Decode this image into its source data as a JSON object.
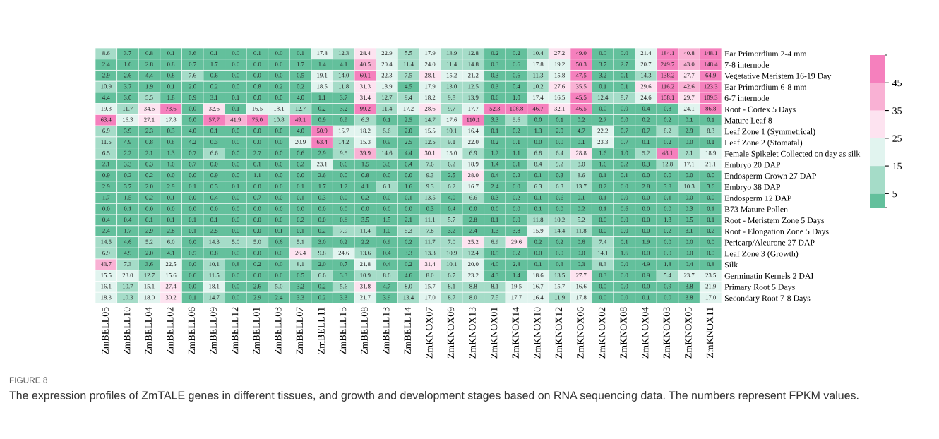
{
  "chart_data": {
    "type": "heatmap",
    "annotations": [
      "FIGURE 8",
      "The expression profiles of ZmTALE genes in different tissues, and growth and development stages based on RNA sequencing data. The numbers represent FPKM values."
    ],
    "categories": [
      "ZmBELL05",
      "ZmBELL10",
      "ZmBELL04",
      "ZmBELL02",
      "ZmBELL06",
      "ZmBELL09",
      "ZmBELL12",
      "ZmBELL01",
      "ZmBELL03",
      "ZmBELL07",
      "ZmBELL11",
      "ZmBELL15",
      "ZmBELL08",
      "ZmBELL13",
      "ZmBELL14",
      "ZmKNOX07",
      "ZmKNOX09",
      "ZmKNOX13",
      "ZmKNOX01",
      "ZmKNOX14",
      "ZmKNOX10",
      "ZmKNOX12",
      "ZmKNOX06",
      "ZmKNOX02",
      "ZmKNOX08",
      "ZmKNOX04",
      "ZmKNOX03",
      "ZmKNOX05",
      "ZmKNOX11"
    ],
    "y_categories": [
      "Ear Primordium 2-4 mm",
      "7-8 internode",
      "Vegetative Meristem 16-19 Day",
      "Ear Primordium 6-8 mm",
      "6-7 internode",
      "Root - Cortex 5 Days",
      "Mature Leaf 8",
      "Leaf Zone 1 (Symmetrical)",
      "Leaf Zone 2 (Stomatal)",
      "Female Spikelet Collected on day as silk",
      "Embryo 20 DAP",
      "Endosperm Crown 27 DAP",
      "Embryo 38 DAP",
      "Endosperm 12 DAP",
      "B73 Mature Pollen",
      "Root - Meristem Zone 5 Days",
      "Root - Elongation Zone 5 Days",
      "Pericarp/Aleurone 27 DAP",
      "Leaf Zone 3 (Growth)",
      "Silk",
      "Germinatin Kernels 2 DAI",
      "Primary Root 5 Days",
      "Secondary Root 7-8 Days"
    ],
    "cells": [
      [
        8.6,
        3.7,
        0.8,
        0.1,
        3.6,
        0.1,
        0.0,
        0.1,
        0.0,
        0.1,
        17.8,
        12.3,
        28.4,
        22.9,
        5.5,
        17.9,
        13.9,
        12.8,
        0.2,
        0.2,
        10.4,
        27.2,
        49.0,
        0.0,
        0.0,
        21.4,
        184.1,
        40.8,
        148.1
      ],
      [
        2.4,
        1.6,
        2.8,
        0.8,
        0.7,
        1.7,
        0.0,
        0.0,
        0.0,
        1.7,
        1.4,
        4.1,
        40.5,
        20.4,
        11.4,
        24.0,
        11.4,
        14.8,
        0.3,
        0.6,
        17.8,
        19.2,
        50.3,
        3.7,
        2.7,
        20.7,
        249.7,
        43.0,
        148.4
      ],
      [
        2.9,
        2.6,
        4.4,
        0.8,
        7.6,
        0.6,
        0.0,
        0.0,
        0.0,
        0.5,
        19.1,
        14.0,
        60.1,
        22.3,
        7.5,
        28.1,
        15.2,
        21.2,
        0.3,
        0.6,
        11.3,
        15.8,
        47.5,
        3.2,
        0.1,
        14.3,
        138.2,
        27.7,
        64.9
      ],
      [
        10.9,
        3.7,
        1.9,
        0.1,
        2.0,
        0.2,
        0.0,
        0.8,
        0.2,
        0.2,
        18.5,
        11.8,
        31.3,
        18.9,
        4.5,
        17.9,
        13.0,
        12.5,
        0.3,
        0.4,
        10.2,
        27.6,
        35.5,
        0.1,
        0.1,
        29.6,
        116.2,
        42.6,
        123.3
      ],
      [
        4.4,
        3.0,
        5.5,
        1.8,
        0.9,
        3.1,
        0.1,
        0.0,
        0.0,
        4.0,
        1.1,
        3.7,
        31.4,
        12.7,
        9.4,
        18.2,
        9.8,
        13.9,
        0.6,
        1.0,
        17.4,
        16.5,
        45.5,
        12.4,
        8.7,
        24.6,
        158.1,
        29.7,
        109.3
      ],
      [
        19.3,
        11.7,
        34.6,
        73.6,
        0.0,
        32.6,
        0.1,
        16.5,
        18.1,
        12.7,
        0.2,
        3.2,
        99.2,
        11.4,
        17.2,
        28.6,
        9.7,
        17.7,
        52.3,
        108.8,
        46.7,
        32.1,
        46.5,
        0.0,
        0.0,
        0.4,
        0.3,
        24.1,
        86.8
      ],
      [
        63.4,
        16.3,
        27.1,
        17.8,
        0.0,
        57.7,
        41.9,
        75.0,
        10.8,
        49.1,
        0.9,
        0.9,
        6.3,
        0.1,
        2.5,
        14.7,
        17.6,
        110.1,
        3.3,
        5.6,
        0.0,
        0.1,
        0.2,
        2.7,
        0.0,
        0.2,
        0.2,
        0.1,
        0.1
      ],
      [
        6.9,
        3.9,
        2.3,
        0.3,
        4.0,
        0.1,
        0.0,
        0.0,
        0.0,
        4.0,
        50.9,
        15.7,
        18.2,
        5.6,
        2.0,
        15.5,
        10.1,
        16.4,
        0.1,
        0.2,
        1.3,
        2.0,
        4.7,
        22.2,
        0.7,
        0.7,
        8.2,
        2.9,
        8.3
      ],
      [
        11.5,
        4.9,
        0.8,
        0.8,
        4.2,
        0.3,
        0.0,
        0.0,
        0.0,
        20.9,
        63.4,
        14.2,
        15.3,
        0.9,
        2.5,
        12.5,
        9.1,
        22.0,
        0.2,
        0.1,
        0.0,
        0.0,
        0.1,
        23.3,
        0.7,
        0.1,
        0.2,
        0.0,
        0.1
      ],
      [
        6.5,
        2.2,
        2.1,
        1.3,
        0.7,
        6.6,
        0.0,
        2.7,
        0.0,
        0.6,
        2.9,
        9.5,
        39.9,
        14.6,
        4.4,
        30.1,
        15.0,
        6.9,
        1.2,
        1.1,
        6.8,
        6.4,
        28.8,
        1.6,
        1.0,
        5.2,
        48.1,
        7.1,
        18.9
      ],
      [
        2.1,
        3.3,
        0.3,
        1.0,
        0.7,
        0.0,
        0.0,
        0.1,
        0.0,
        0.2,
        23.1,
        0.6,
        1.5,
        3.8,
        0.4,
        7.6,
        6.2,
        18.9,
        1.4,
        0.1,
        8.4,
        9.2,
        8.0,
        1.6,
        0.2,
        0.3,
        12.8,
        17.1,
        21.1
      ],
      [
        0.9,
        0.2,
        0.2,
        0.0,
        0.0,
        0.9,
        0.0,
        1.1,
        0.0,
        0.0,
        2.6,
        0.0,
        0.8,
        0.0,
        0.0,
        9.3,
        2.5,
        28.0,
        0.4,
        0.2,
        0.1,
        0.3,
        8.6,
        0.1,
        0.1,
        0.0,
        0.0,
        0.0,
        0.0
      ],
      [
        2.9,
        3.7,
        2.0,
        2.9,
        0.1,
        0.3,
        0.1,
        0.0,
        0.0,
        0.1,
        1.7,
        1.2,
        4.1,
        6.1,
        1.6,
        9.3,
        6.2,
        16.7,
        2.4,
        0.0,
        6.3,
        6.3,
        13.7,
        0.2,
        0.0,
        2.8,
        3.8,
        10.3,
        3.6
      ],
      [
        1.7,
        1.5,
        0.2,
        0.1,
        0.0,
        0.4,
        0.0,
        0.7,
        0.0,
        0.1,
        0.3,
        0.0,
        0.2,
        0.0,
        0.1,
        13.5,
        4.0,
        6.6,
        0.3,
        0.2,
        0.1,
        0.6,
        0.1,
        0.1,
        0.0,
        0.0,
        0.1,
        0.0,
        0.0
      ],
      [
        0.0,
        0.1,
        0.0,
        0.0,
        0.0,
        0.0,
        0.0,
        0.0,
        0.0,
        0.0,
        0.0,
        0.0,
        0.0,
        0.0,
        0.0,
        0.3,
        0.4,
        0.0,
        0.0,
        0.0,
        0.1,
        0.0,
        0.2,
        0.1,
        0.6,
        0.0,
        0.0,
        0.3,
        0.1
      ],
      [
        0.4,
        0.4,
        0.1,
        0.1,
        0.1,
        0.1,
        0.0,
        0.0,
        0.0,
        0.2,
        0.0,
        0.8,
        3.5,
        1.5,
        2.1,
        11.1,
        5.7,
        2.8,
        0.1,
        0.0,
        11.8,
        10.2,
        5.2,
        0.0,
        0.0,
        0.0,
        1.3,
        0.5,
        0.1
      ],
      [
        2.4,
        1.7,
        2.9,
        2.8,
        0.1,
        2.5,
        0.0,
        0.0,
        0.1,
        0.1,
        0.2,
        7.9,
        11.4,
        1.0,
        5.3,
        7.8,
        3.2,
        2.4,
        1.3,
        3.8,
        15.9,
        14.4,
        11.8,
        0.0,
        0.0,
        0.0,
        0.2,
        3.1,
        0.2
      ],
      [
        14.5,
        4.6,
        5.2,
        6.0,
        0.0,
        14.3,
        5.0,
        5.0,
        0.6,
        5.1,
        3.0,
        0.2,
        2.2,
        0.9,
        0.2,
        11.7,
        7.0,
        25.2,
        6.9,
        29.6,
        0.2,
        0.2,
        0.6,
        7.4,
        0.1,
        1.9,
        0.0,
        0.0,
        0.0
      ],
      [
        6.9,
        4.9,
        2.0,
        4.1,
        0.5,
        0.8,
        0.0,
        0.0,
        0.0,
        26.4,
        9.8,
        24.6,
        13.6,
        0.4,
        3.3,
        13.3,
        10.9,
        12.4,
        0.5,
        0.2,
        0.0,
        0.0,
        0.0,
        14.1,
        1.6,
        0.0,
        0.0,
        0.0,
        0.0
      ],
      [
        43.7,
        7.3,
        3.6,
        22.5,
        0.0,
        10.1,
        0.8,
        0.2,
        0.0,
        8.1,
        2.0,
        0.7,
        21.8,
        0.4,
        0.2,
        31.4,
        10.1,
        20.0,
        4.0,
        2.8,
        0.1,
        0.3,
        0.3,
        8.3,
        0.0,
        4.9,
        1.8,
        0.4,
        0.8
      ],
      [
        15.5,
        23.0,
        12.7,
        15.6,
        0.6,
        11.5,
        0.0,
        0.0,
        0.0,
        0.5,
        6.6,
        3.3,
        10.9,
        8.6,
        4.6,
        8.0,
        6.7,
        23.2,
        4.3,
        1.4,
        18.6,
        13.5,
        27.7,
        0.3,
        0.0,
        0.9,
        5.4,
        23.7,
        23.5
      ],
      [
        16.1,
        10.7,
        15.1,
        27.4,
        0.0,
        18.1,
        0.0,
        2.6,
        5.0,
        3.2,
        0.2,
        5.6,
        31.8,
        4.7,
        8.0,
        15.7,
        8.1,
        8.8,
        8.1,
        19.5,
        16.7,
        15.7,
        16.6,
        0.0,
        0.0,
        0.0,
        0.9,
        3.8,
        21.9
      ],
      [
        18.3,
        10.3,
        18.0,
        30.2,
        0.1,
        14.7,
        0.0,
        2.9,
        2.4,
        3.3,
        0.2,
        3.3,
        21.7,
        3.9,
        13.4,
        17.0,
        8.7,
        8.0,
        7.5,
        17.7,
        16.4,
        11.9,
        17.8,
        0.0,
        0.0,
        0.1,
        0.0,
        3.8,
        17.0
      ]
    ],
    "cell_labels": [
      [
        "8.6",
        "3.7",
        "0.8",
        "0.1",
        "3.6",
        "0.1",
        "0.0",
        "0.1",
        "0.0",
        "0.1",
        "17.8",
        "12.3",
        "28.4",
        "22.9",
        "5.5",
        "17.9",
        "13.9",
        "12.8",
        "0.2",
        "0.2",
        "10.4",
        "27.2",
        "49.0",
        "0.0",
        "0.0",
        "21.4",
        "184.1",
        "40.8",
        "148.1"
      ],
      [
        "2.4",
        "1.6",
        "2.8",
        "0.8",
        "0.7",
        "1.7",
        "0.0",
        "0.0",
        "0.0",
        "1.7",
        "1.4",
        "4.1",
        "40.5",
        "20.4",
        "11.4",
        "24.0",
        "11.4",
        "14.8",
        "0.3",
        "0.6",
        "17.8",
        "19.2",
        "50.3",
        "3.7",
        "2.7",
        "20.7",
        "249.7",
        "43.0",
        "148.4"
      ],
      [
        "2.9",
        "2.6",
        "4.4",
        "0.8",
        "7.6",
        "0.6",
        "0.0",
        "0.0",
        "0.0",
        "0.5",
        "19.1",
        "14.0",
        "60.1",
        "22.3",
        "7.5",
        "28.1",
        "15.2",
        "21.2",
        "0.3",
        "0.6",
        "11.3",
        "15.8",
        "47.5",
        "3.2",
        "0.1",
        "14.3",
        "138.2",
        "27.7",
        "64.9"
      ],
      [
        "10.9",
        "3.7",
        "1.9",
        "0.1",
        "2.0",
        "0.2",
        "0.0",
        "0.8",
        "0.2",
        "0.2",
        "18.5",
        "11.8",
        "31.3",
        "18.9",
        "4.5",
        "17.9",
        "13.0",
        "12.5",
        "0.3",
        "0.4",
        "10.2",
        "27.6",
        "35.5",
        "0.1",
        "0.1",
        "29.6",
        "116.2",
        "42.6",
        "123.3"
      ],
      [
        "4.4",
        "3.0",
        "5.5",
        "1.8",
        "0.9",
        "3.1",
        "0.1",
        "0.0",
        "0.0",
        "4.0",
        "1.1",
        "3.7",
        "31.4",
        "12.7",
        "9.4",
        "18.2",
        "9.8",
        "13.9",
        "0.6",
        "1.0",
        "17.4",
        "16.5",
        "45.5",
        "12.4",
        "8.7",
        "24.6",
        "158.1",
        "29.7",
        "109.3"
      ],
      [
        "19.3",
        "11.7",
        "34.6",
        "73.6",
        "0.0",
        "32.6",
        "0.1",
        "16.5",
        "18.1",
        "12.7",
        "0.2",
        "3.2",
        "99.2",
        "11.4",
        "17.2",
        "28.6",
        "9.7",
        "17.7",
        "52.3",
        "108.8",
        "46.7",
        "32.1",
        "46.5",
        "0.0",
        "0.0",
        "0.4",
        "0.3",
        "24.1",
        "86.8"
      ],
      [
        "63.4",
        "16.3",
        "27.1",
        "17.8",
        "0.0",
        "57.7",
        "41.9",
        "75.0",
        "10.8",
        "49.1",
        "0.9",
        "0.9",
        "6.3",
        "0.1",
        "2.5",
        "14.7",
        "17.6",
        "110.1",
        "3.3",
        "5.6",
        "0.0",
        "0.1",
        "0.2",
        "2.7",
        "0.0",
        "0.2",
        "0.2",
        "0.1",
        "0.1"
      ],
      [
        "6.9",
        "3.9",
        "2.3",
        "0.3",
        "4.0",
        "0.1",
        "0.0",
        "0.0",
        "0.0",
        "4.0",
        "50.9",
        "15.7",
        "18.2",
        "5.6",
        "2.0",
        "15.5",
        "10.1",
        "16.4",
        "0.1",
        "0.2",
        "1.3",
        "2.0",
        "4.7",
        "22.2",
        "0.7",
        "0.7",
        "8.2",
        "2.9",
        "8.3"
      ],
      [
        "11.5",
        "4.9",
        "0.8",
        "0.8",
        "4.2",
        "0.3",
        "0.0",
        "0.0",
        "0.0",
        "20.9",
        "63.4",
        "14.2",
        "15.3",
        "0.9",
        "2.5",
        "12.5",
        "9.1",
        "22.0",
        "0.2",
        "0.1",
        "0.0",
        "0.0",
        "0.1",
        "23.3",
        "0.7",
        "0.1",
        "0.2",
        "0.0",
        "0.1"
      ],
      [
        "6.5",
        "2.2",
        "2.1",
        "1.3",
        "0.7",
        "6.6",
        "0.0",
        "2.7",
        "0.0",
        "0.6",
        "2.9",
        "9.5",
        "39.9",
        "14.6",
        "4.4",
        "30.1",
        "15.0",
        "6.9",
        "1.2",
        "1.1",
        "6.8",
        "6.4",
        "28.8",
        "1.6",
        "1.0",
        "5.2",
        "48.1",
        "7.1",
        "18.9"
      ],
      [
        "2.1",
        "3.3",
        "0.3",
        "1.0",
        "0.7",
        "0.0",
        "0.0",
        "0.1",
        "0.0",
        "0.2",
        "23.1",
        "0.6",
        "1.5",
        "3.8",
        "0.4",
        "7.6",
        "6.2",
        "18.9",
        "1.4",
        "0.1",
        "8.4",
        "9.2",
        "8.0",
        "1.6",
        "0.2",
        "0.3",
        "12.8",
        "17.1",
        "21.1"
      ],
      [
        "0.9",
        "0.2",
        "0.2",
        "0.0",
        "0.0",
        "0.9",
        "0.0",
        "1.1",
        "0.0",
        "0.0",
        "2.6",
        "0.0",
        "0.8",
        "0.0",
        "0.0",
        "9.3",
        "2.5",
        "28.0",
        "0.4",
        "0.2",
        "0.1",
        "0.3",
        "8.6",
        "0.1",
        "0.1",
        "0.0",
        "0.0",
        "0.0",
        "0.0"
      ],
      [
        "2.9",
        "3.7",
        "2.0",
        "2.9",
        "0.1",
        "0.3",
        "0.1",
        "0.0",
        "0.0",
        "0.1",
        "1.7",
        "1.2",
        "4.1",
        "6.1",
        "1.6",
        "9.3",
        "6.2",
        "16.7",
        "2.4",
        "0.0",
        "6.3",
        "6.3",
        "13.7",
        "0.2",
        "0.0",
        "2.8",
        "3.8",
        "10.3",
        "3.6"
      ],
      [
        "1.7",
        "1.5",
        "0.2",
        "0.1",
        "0.0",
        "0.4",
        "0.0",
        "0.7",
        "0.0",
        "0.1",
        "0.3",
        "0.0",
        "0.2",
        "0.0",
        "0.1",
        "13.5",
        "4.0",
        "6.6",
        "0.3",
        "0.2",
        "0.1",
        "0.6",
        "0.1",
        "0.1",
        "0.0",
        "0.0",
        "0.1",
        "0.0",
        "0.0"
      ],
      [
        "0.0",
        "0.1",
        "0.0",
        "0.0",
        "0.0",
        "0.0",
        "0.0",
        "0.0",
        "0.0",
        "0.0",
        "0.0",
        "0.0",
        "0.0",
        "0.0",
        "0.0",
        "0.3",
        "0.4",
        "0.0",
        "0.0",
        "0.0",
        "0.1",
        "0.0",
        "0.2",
        "0.1",
        "0.6",
        "0.0",
        "0.0",
        "0.3",
        "0.1"
      ],
      [
        "0.4",
        "0.4",
        "0.1",
        "0.1",
        "0.1",
        "0.1",
        "0.0",
        "0.0",
        "0.0",
        "0.2",
        "0.0",
        "0.8",
        "3.5",
        "1.5",
        "2.1",
        "11.1",
        "5.7",
        "2.8",
        "0.1",
        "0.0",
        "11.8",
        "10.2",
        "5.2",
        "0.0",
        "0.0",
        "0.0",
        "1.3",
        "0.5",
        "0.1"
      ],
      [
        "2.4",
        "1.7",
        "2.9",
        "2.8",
        "0.1",
        "2.5",
        "0.0",
        "0.0",
        "0.1",
        "0.1",
        "0.2",
        "7.9",
        "11.4",
        "1.0",
        "5.3",
        "7.8",
        "3.2",
        "2.4",
        "1.3",
        "3.8",
        "15.9",
        "14.4",
        "11.8",
        "0.0",
        "0.0",
        "0.0",
        "0.2",
        "3.1",
        "0.2"
      ],
      [
        "14.5",
        "4.6",
        "5.2",
        "6.0",
        "0.0",
        "14.3",
        "5.0",
        "5.0",
        "0.6",
        "5.1",
        "3.0",
        "0.2",
        "2.2",
        "0.9",
        "0.2",
        "11.7",
        "7.0",
        "25.2",
        "6.9",
        "29.6",
        "0.2",
        "0.2",
        "0.6",
        "7.4",
        "0.1",
        "1.9",
        "0.0",
        "0.0",
        "0.0"
      ],
      [
        "6.9",
        "4.9",
        "2.0",
        "4.1",
        "0.5",
        "0.8",
        "0.0",
        "0.0",
        "0.0",
        "26.4",
        "9.8",
        "24.6",
        "13.6",
        "0.4",
        "3.3",
        "13.3",
        "10.9",
        "12.4",
        "0.5",
        "0.2",
        "0.0",
        "0.0",
        "0.0",
        "14.1",
        "1.6",
        "0.0",
        "0.0",
        "0.0",
        "0.0"
      ],
      [
        "43.7",
        "7.3",
        "3.6",
        "22.5",
        "0.0",
        "10.1",
        "0.8",
        "0.2",
        "0.0",
        "8.1",
        "2.0",
        "0.7",
        "21.8",
        "0.4",
        "0.2",
        "31.4",
        "10.1",
        "20.0",
        "4.0",
        "2.8",
        "0.1",
        "0.3",
        "0.3",
        "8.3",
        "0.0",
        "4.9",
        "1.8",
        "0.4",
        "0.8"
      ],
      [
        "15.5",
        "23.0",
        "12.7",
        "15.6",
        "0.6",
        "11.5",
        "0.0",
        "0.0",
        "0.0",
        "0.5",
        "6.6",
        "3.3",
        "10.9",
        "8.6",
        "4.6",
        "8.0",
        "6.7",
        "23.2",
        "4.3",
        "1.4",
        "18.6",
        "13.5",
        "27.7",
        "0.3",
        "0.0",
        "0.9",
        "5.4",
        "23.7",
        "23.5"
      ],
      [
        "16.1",
        "10.7",
        "15.1",
        "27.4",
        "0.0",
        "18.1",
        "0.0",
        "2.6",
        "5.0",
        "3.2",
        "0.2",
        "5.6",
        "31.8",
        "4.7",
        "8.0",
        "15.7",
        "8.1",
        "8.8",
        "8.1",
        "19.5",
        "16.7",
        "15.7",
        "16.6",
        "0.0",
        "0.0",
        "0.0",
        "0.9",
        "3.8",
        "21.9"
      ],
      [
        "18.3",
        "10.3",
        "18.0",
        "30.2",
        "0.1",
        "14.7",
        "0.0",
        "2.9",
        "2.4",
        "3.3",
        "0.2",
        "3.3",
        "21.7",
        "3.9",
        "13.4",
        "17.0",
        "8.7",
        "8.0",
        "7.5",
        "17.7",
        "16.4",
        "11.9",
        "17.8",
        "0.0",
        "0.0",
        "0.1",
        "0.0",
        "3.8",
        "17.0"
      ]
    ],
    "clim": [
      0,
      55
    ],
    "cticks": [
      5,
      15,
      25,
      35,
      45
    ],
    "colors": [
      "#63c09c",
      "#a5dcc8",
      "#e1f4ef",
      "#fde3f0",
      "#f9b1d4",
      "#f580bd"
    ]
  }
}
